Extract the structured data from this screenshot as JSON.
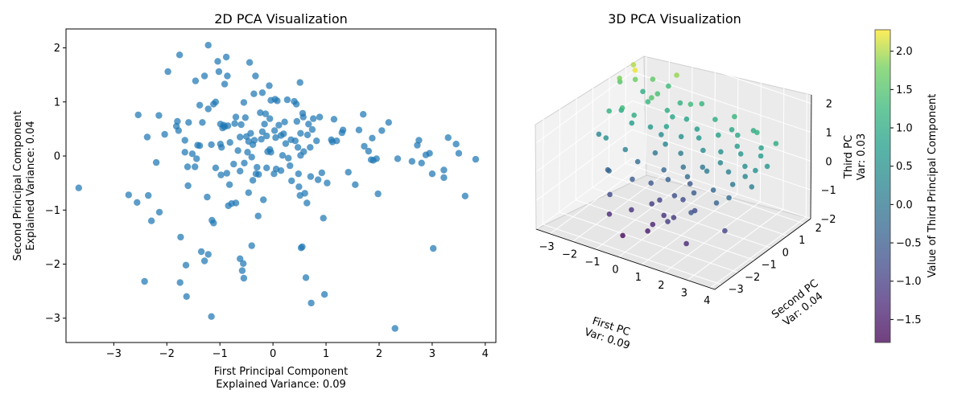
{
  "chart_data": [
    {
      "type": "scatter",
      "title": "2D PCA Visualization",
      "xlabel": "First Principal Component\nExplained Variance: 0.09",
      "ylabel": "Second Principal Component\nExplained Variance: 0.04",
      "xlim": [
        -3.9,
        4.2
      ],
      "ylim": [
        -3.45,
        2.35
      ],
      "xticks": [
        "−3",
        "−2",
        "−1",
        "0",
        "1",
        "2",
        "3",
        "4"
      ],
      "yticks": [
        "−3",
        "−2",
        "−1",
        "0",
        "1",
        "2"
      ],
      "grid": false,
      "color": "#1f77b4",
      "points": [
        [
          -3.66,
          -0.59
        ],
        [
          -2.72,
          -0.72
        ],
        [
          -2.56,
          -0.86
        ],
        [
          -2.54,
          0.76
        ],
        [
          -2.42,
          -2.32
        ],
        [
          -2.37,
          0.35
        ],
        [
          -2.35,
          -0.73
        ],
        [
          -2.29,
          -1.2
        ],
        [
          -2.2,
          -0.12
        ],
        [
          -2.15,
          0.75
        ],
        [
          -2.14,
          -1.04
        ],
        [
          -2.04,
          0.4
        ],
        [
          -1.98,
          1.56
        ],
        [
          -1.82,
          0.55
        ],
        [
          -1.8,
          0.64
        ],
        [
          -1.78,
          0.47
        ],
        [
          -1.76,
          1.87
        ],
        [
          -1.74,
          -1.5
        ],
        [
          -1.75,
          -2.34
        ],
        [
          -1.66,
          0.29
        ],
        [
          -1.66,
          0.07
        ],
        [
          -1.64,
          -2.02
        ],
        [
          -1.63,
          -2.6
        ],
        [
          -1.61,
          -0.2
        ],
        [
          -1.6,
          -0.55
        ],
        [
          -1.59,
          0.62
        ],
        [
          -1.52,
          0.04
        ],
        [
          -1.47,
          -0.2
        ],
        [
          -1.46,
          1.39
        ],
        [
          -1.44,
          -0.05
        ],
        [
          -1.42,
          0.2
        ],
        [
          -1.38,
          0.94
        ],
        [
          -1.38,
          0.19
        ],
        [
          -1.35,
          -1.77
        ],
        [
          -1.33,
          0.62
        ],
        [
          -1.29,
          -1.94
        ],
        [
          -1.29,
          1.48
        ],
        [
          -1.24,
          -0.76
        ],
        [
          -1.22,
          0.87
        ],
        [
          -1.22,
          2.05
        ],
        [
          -1.22,
          -1.82
        ],
        [
          -1.16,
          0.21
        ],
        [
          -1.16,
          -2.97
        ],
        [
          -1.15,
          -1.19
        ],
        [
          -1.12,
          0.96
        ],
        [
          -1.12,
          -1.24
        ],
        [
          -1.08,
          1
        ],
        [
          -1.08,
          -0.22
        ],
        [
          -1.04,
          1.75
        ],
        [
          -1.02,
          1.56
        ],
        [
          -0.99,
          0.59
        ],
        [
          -0.97,
          0.16
        ],
        [
          -0.99,
          0.22
        ],
        [
          -0.98,
          -0.35
        ],
        [
          -0.95,
          0.52
        ],
        [
          -0.93,
          0.57
        ],
        [
          -0.91,
          0.54
        ],
        [
          -0.91,
          1.33
        ],
        [
          -0.88,
          1.83
        ],
        [
          -0.87,
          -0.32
        ],
        [
          -0.86,
          1.48
        ],
        [
          -0.85,
          0.56
        ],
        [
          -0.84,
          -0.92
        ],
        [
          -0.82,
          -0.53
        ],
        [
          -0.81,
          0.25
        ],
        [
          -0.78,
          -0.88
        ],
        [
          -0.74,
          -0.15
        ],
        [
          -0.72,
          0.6
        ],
        [
          -0.7,
          -0.87
        ],
        [
          -0.7,
          0.72
        ],
        [
          -0.66,
          0.1
        ],
        [
          -0.62,
          -0.28
        ],
        [
          -0.62,
          0.35
        ],
        [
          -0.62,
          -1.9
        ],
        [
          -0.6,
          0.58
        ],
        [
          -0.58,
          -2.12
        ],
        [
          -0.56,
          -1.99
        ],
        [
          -0.55,
          -2.26
        ],
        [
          -0.55,
          0.99
        ],
        [
          -0.54,
          -0.13
        ],
        [
          -0.52,
          0.71
        ],
        [
          -0.5,
          0.36
        ],
        [
          -0.48,
          0.07
        ],
        [
          -0.46,
          0.27
        ],
        [
          -0.46,
          -0.68
        ],
        [
          -0.44,
          1.73
        ],
        [
          -0.42,
          0.42
        ],
        [
          -0.4,
          -0.02
        ],
        [
          -0.4,
          -1.66
        ],
        [
          -0.38,
          0.21
        ],
        [
          -0.38,
          -0.45
        ],
        [
          -0.36,
          1.15
        ],
        [
          -0.35,
          0.29
        ],
        [
          -0.33,
          1.48
        ],
        [
          -0.32,
          -0.33
        ],
        [
          -0.3,
          -0.21
        ],
        [
          -0.28,
          -1.11
        ],
        [
          -0.27,
          -0.34
        ],
        [
          -0.24,
          0.8
        ],
        [
          -0.22,
          0.31
        ],
        [
          -0.2,
          1.17
        ],
        [
          -0.2,
          0.45
        ],
        [
          -0.18,
          -0.81
        ],
        [
          -0.16,
          0.59
        ],
        [
          -0.14,
          0.78
        ],
        [
          -0.12,
          0.37
        ],
        [
          -0.12,
          -0.22
        ],
        [
          -0.1,
          0.08
        ],
        [
          -0.07,
          1.3
        ],
        [
          -0.06,
          0.69
        ],
        [
          -0.06,
          0.12
        ],
        [
          -0.04,
          1.03
        ],
        [
          -0.04,
          0.07
        ],
        [
          0.02,
          -0.33
        ],
        [
          0.03,
          0.47
        ],
        [
          0.04,
          1.05
        ],
        [
          0.05,
          0.34
        ],
        [
          0.06,
          -0.24
        ],
        [
          0.08,
          1.02
        ],
        [
          0.11,
          0.57
        ],
        [
          0.15,
          -0.27
        ],
        [
          0.15,
          0.38
        ],
        [
          0.18,
          0.01
        ],
        [
          0.2,
          0.41
        ],
        [
          0.22,
          0.63
        ],
        [
          0.24,
          0.23
        ],
        [
          0.27,
          1.04
        ],
        [
          0.29,
          -0.04
        ],
        [
          0.32,
          -0.18
        ],
        [
          0.34,
          0.3
        ],
        [
          0.35,
          -0.46
        ],
        [
          0.4,
          1.01
        ],
        [
          0.42,
          0.28
        ],
        [
          0.44,
          0.96
        ],
        [
          0.45,
          0.64
        ],
        [
          0.47,
          0.16
        ],
        [
          0.48,
          -0.33
        ],
        [
          0.49,
          -0.57
        ],
        [
          0.51,
          -0.73
        ],
        [
          0.51,
          1.36
        ],
        [
          0.52,
          0.42
        ],
        [
          0.52,
          0.01
        ],
        [
          0.53,
          -1.7
        ],
        [
          0.55,
          -1.68
        ],
        [
          0.56,
          0.79
        ],
        [
          0.57,
          0.72
        ],
        [
          0.58,
          0.08
        ],
        [
          0.6,
          -0.69
        ],
        [
          0.62,
          -2.25
        ],
        [
          0.64,
          -0.87
        ],
        [
          0.65,
          0.39
        ],
        [
          0.67,
          0.59
        ],
        [
          0.7,
          0.16
        ],
        [
          0.71,
          -0.38
        ],
        [
          0.72,
          -2.72
        ],
        [
          0.74,
          0.49
        ],
        [
          0.76,
          0.69
        ],
        [
          0.82,
          0.28
        ],
        [
          0.85,
          -0.44
        ],
        [
          0.88,
          0.72
        ],
        [
          0.92,
          -0.31
        ],
        [
          0.95,
          -1.15
        ],
        [
          0.97,
          -2.56
        ],
        [
          1.02,
          -0.5
        ],
        [
          1.1,
          0.3
        ],
        [
          1.12,
          0.26
        ],
        [
          1.15,
          0.68
        ],
        [
          1.2,
          0.28
        ],
        [
          1.3,
          0.43
        ],
        [
          1.32,
          0.48
        ],
        [
          1.42,
          -0.3
        ],
        [
          1.55,
          -0.53
        ],
        [
          1.62,
          0.48
        ],
        [
          1.7,
          0.77
        ],
        [
          1.72,
          0.18
        ],
        [
          1.8,
          0.09
        ],
        [
          1.85,
          -0.07
        ],
        [
          1.87,
          0.33
        ],
        [
          1.89,
          -0.08
        ],
        [
          1.95,
          -0.05
        ],
        [
          1.98,
          -0.7
        ],
        [
          2.05,
          0.47
        ],
        [
          2.18,
          0.62
        ],
        [
          2.3,
          -3.19
        ],
        [
          2.35,
          -0.05
        ],
        [
          2.62,
          -0.1
        ],
        [
          2.72,
          0.2
        ],
        [
          2.75,
          0.29
        ],
        [
          2.8,
          -0.13
        ],
        [
          2.88,
          0.02
        ],
        [
          2.95,
          0.05
        ],
        [
          3,
          -0.33
        ],
        [
          3.02,
          -1.71
        ],
        [
          3.22,
          -0.4
        ],
        [
          3.22,
          -0.26
        ],
        [
          3.3,
          0.34
        ],
        [
          3.45,
          0.22
        ],
        [
          3.5,
          0.05
        ],
        [
          3.62,
          -0.74
        ],
        [
          3.82,
          -0.06
        ]
      ]
    },
    {
      "type": "scatter3d",
      "title": "3D PCA Visualization",
      "xlabel": "First PC\nVar: 0.09",
      "ylabel": "Second PC\nVar: 0.04",
      "zlabel": "Third PC\nVar: 0.03",
      "xlim": [
        -3.6,
        4.2
      ],
      "ylim": [
        -3.4,
        2.4
      ],
      "zlim": [
        -2.0,
        2.3
      ],
      "xticks": [
        "−3",
        "−2",
        "−1",
        "0",
        "1",
        "2",
        "3",
        "4"
      ],
      "yticks": [
        "−3",
        "−2",
        "−1",
        "0",
        "1",
        "2"
      ],
      "zticks": [
        "−2",
        "−1",
        "0",
        "1",
        "2"
      ],
      "colorbar": {
        "label": "Value of Third Principal Component",
        "range": [
          -1.8,
          2.28
        ],
        "ticks": [
          "−1.5",
          "−1.0",
          "−0.5",
          "0.0",
          "0.5",
          "1.0",
          "1.5",
          "2.0"
        ],
        "colormap": "viridis"
      },
      "points": [
        [
          -3.0,
          0.8,
          1.5
        ],
        [
          -2.8,
          0.5,
          1.8
        ],
        [
          -2.7,
          1.2,
          2.0
        ],
        [
          -2.6,
          -0.4,
          1.1
        ],
        [
          -2.5,
          0.2,
          0.9
        ],
        [
          -2.4,
          0.9,
          1.7
        ],
        [
          -2.3,
          -1.0,
          0.5
        ],
        [
          -2.2,
          0.6,
          2.2
        ],
        [
          -2.1,
          -0.3,
          1.3
        ],
        [
          -2.0,
          1.4,
          1.6
        ],
        [
          -1.9,
          0.0,
          0.7
        ],
        [
          -1.8,
          -1.5,
          -0.3
        ],
        [
          -1.7,
          0.7,
          1.2
        ],
        [
          -1.6,
          -0.8,
          0.2
        ],
        [
          -1.5,
          1.0,
          1.4
        ],
        [
          -1.4,
          -2.0,
          -0.8
        ],
        [
          -1.3,
          0.3,
          0.6
        ],
        [
          -1.2,
          -0.6,
          -0.2
        ],
        [
          -1.1,
          1.6,
          1.9
        ],
        [
          -1.0,
          -1.2,
          -0.5
        ],
        [
          -0.9,
          0.4,
          0.4
        ],
        [
          -0.8,
          -0.1,
          0.0
        ],
        [
          -0.7,
          0.8,
          0.9
        ],
        [
          -0.6,
          -1.8,
          -1.2
        ],
        [
          -0.5,
          0.1,
          0.3
        ],
        [
          -0.4,
          -0.9,
          -0.6
        ],
        [
          -0.3,
          1.1,
          0.8
        ],
        [
          -0.2,
          -0.4,
          -0.3
        ],
        [
          -0.1,
          0.5,
          0.5
        ],
        [
          0.0,
          -1.4,
          -1.0
        ],
        [
          0.1,
          0.2,
          0.1
        ],
        [
          0.2,
          -0.7,
          -0.4
        ],
        [
          0.3,
          0.9,
          0.7
        ],
        [
          0.4,
          -2.2,
          -1.5
        ],
        [
          0.5,
          -0.2,
          -0.1
        ],
        [
          0.6,
          0.6,
          0.6
        ],
        [
          0.7,
          -1.0,
          -0.7
        ],
        [
          0.8,
          1.3,
          1.0
        ],
        [
          0.9,
          -0.5,
          -0.2
        ],
        [
          1.0,
          0.3,
          0.4
        ],
        [
          1.1,
          -1.6,
          -1.1
        ],
        [
          1.2,
          0.0,
          0.0
        ],
        [
          1.3,
          0.8,
          0.8
        ],
        [
          1.4,
          -0.8,
          -0.5
        ],
        [
          1.5,
          1.5,
          1.2
        ],
        [
          1.6,
          -0.3,
          0.1
        ],
        [
          1.7,
          0.4,
          0.5
        ],
        [
          1.8,
          -1.3,
          -0.8
        ],
        [
          1.9,
          0.1,
          0.3
        ],
        [
          2.0,
          1.0,
          0.9
        ],
        [
          2.1,
          -0.6,
          -0.3
        ],
        [
          2.2,
          0.7,
          0.7
        ],
        [
          2.3,
          -2.5,
          -1.3
        ],
        [
          2.4,
          -0.1,
          0.2
        ],
        [
          2.5,
          0.5,
          0.6
        ],
        [
          2.6,
          -1.1,
          -0.4
        ],
        [
          2.7,
          1.2,
          1.1
        ],
        [
          2.8,
          -0.4,
          0.0
        ],
        [
          2.9,
          0.2,
          0.4
        ],
        [
          3.0,
          -0.9,
          -0.2
        ],
        [
          3.1,
          0.9,
          0.8
        ],
        [
          3.2,
          -0.2,
          0.3
        ],
        [
          3.3,
          0.6,
          0.7
        ],
        [
          3.4,
          -1.7,
          -0.9
        ],
        [
          3.5,
          0.0,
          0.5
        ],
        [
          3.6,
          1.1,
          1.0
        ],
        [
          3.7,
          -0.5,
          0.2
        ],
        [
          3.8,
          0.3,
          0.6
        ],
        [
          -2.9,
          -0.6,
          0.3
        ],
        [
          -2.5,
          1.5,
          1.0
        ],
        [
          -2.0,
          -1.3,
          -0.4
        ],
        [
          -1.6,
          1.8,
          1.3
        ],
        [
          -1.2,
          -2.3,
          -1.3
        ],
        [
          -0.8,
          1.4,
          1.1
        ],
        [
          -0.4,
          -2.6,
          -1.7
        ],
        [
          0.0,
          1.6,
          1.2
        ],
        [
          0.4,
          -1.9,
          -1.4
        ],
        [
          0.8,
          -0.2,
          -0.6
        ],
        [
          1.2,
          -2.1,
          -1.0
        ],
        [
          1.6,
          1.2,
          0.9
        ],
        [
          2.0,
          -1.8,
          -0.6
        ],
        [
          2.4,
          1.4,
          1.0
        ],
        [
          -1.8,
          0.0,
          1.0
        ],
        [
          -1.4,
          0.5,
          1.5
        ],
        [
          -1.0,
          0.9,
          1.0
        ],
        [
          -0.6,
          0.3,
          0.8
        ],
        [
          -0.2,
          1.2,
          1.3
        ],
        [
          0.2,
          -1.2,
          -0.9
        ],
        [
          0.6,
          -1.5,
          -1.2
        ],
        [
          1.0,
          -0.9,
          -0.8
        ]
      ]
    }
  ]
}
